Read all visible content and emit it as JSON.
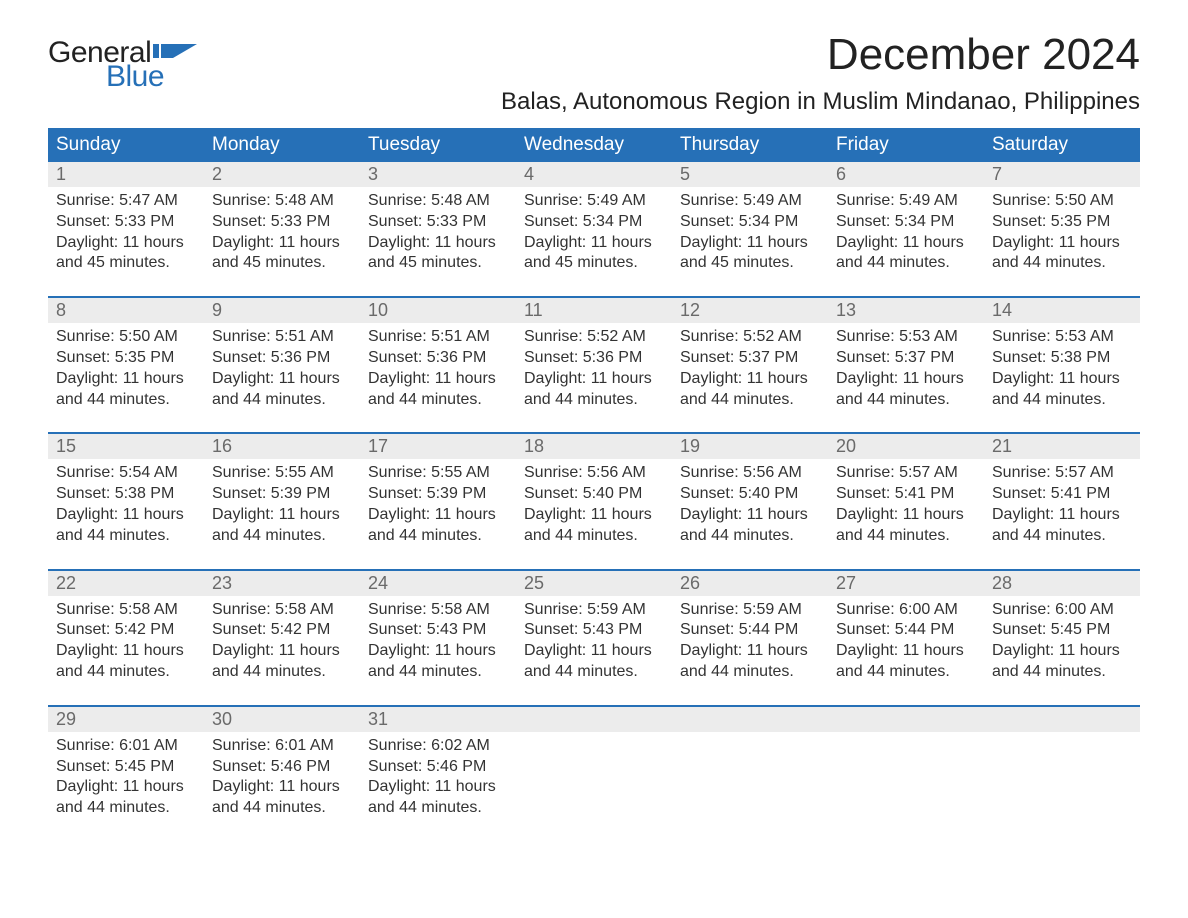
{
  "brand": {
    "text1": "General",
    "text2": "Blue",
    "flag_color": "#2670b7"
  },
  "title": "December 2024",
  "location": "Balas, Autonomous Region in Muslim Mindanao, Philippines",
  "colors": {
    "header_bg": "#2670b7",
    "header_text": "#ffffff",
    "date_bg": "#ececec",
    "date_text": "#6a6a6a",
    "body_text": "#333333",
    "week_rule": "#2670b7"
  },
  "day_names": [
    "Sunday",
    "Monday",
    "Tuesday",
    "Wednesday",
    "Thursday",
    "Friday",
    "Saturday"
  ],
  "weeks": [
    [
      {
        "d": "1",
        "sr": "5:47 AM",
        "ss": "5:33 PM",
        "dl": "11 hours and 45 minutes."
      },
      {
        "d": "2",
        "sr": "5:48 AM",
        "ss": "5:33 PM",
        "dl": "11 hours and 45 minutes."
      },
      {
        "d": "3",
        "sr": "5:48 AM",
        "ss": "5:33 PM",
        "dl": "11 hours and 45 minutes."
      },
      {
        "d": "4",
        "sr": "5:49 AM",
        "ss": "5:34 PM",
        "dl": "11 hours and 45 minutes."
      },
      {
        "d": "5",
        "sr": "5:49 AM",
        "ss": "5:34 PM",
        "dl": "11 hours and 45 minutes."
      },
      {
        "d": "6",
        "sr": "5:49 AM",
        "ss": "5:34 PM",
        "dl": "11 hours and 44 minutes."
      },
      {
        "d": "7",
        "sr": "5:50 AM",
        "ss": "5:35 PM",
        "dl": "11 hours and 44 minutes."
      }
    ],
    [
      {
        "d": "8",
        "sr": "5:50 AM",
        "ss": "5:35 PM",
        "dl": "11 hours and 44 minutes."
      },
      {
        "d": "9",
        "sr": "5:51 AM",
        "ss": "5:36 PM",
        "dl": "11 hours and 44 minutes."
      },
      {
        "d": "10",
        "sr": "5:51 AM",
        "ss": "5:36 PM",
        "dl": "11 hours and 44 minutes."
      },
      {
        "d": "11",
        "sr": "5:52 AM",
        "ss": "5:36 PM",
        "dl": "11 hours and 44 minutes."
      },
      {
        "d": "12",
        "sr": "5:52 AM",
        "ss": "5:37 PM",
        "dl": "11 hours and 44 minutes."
      },
      {
        "d": "13",
        "sr": "5:53 AM",
        "ss": "5:37 PM",
        "dl": "11 hours and 44 minutes."
      },
      {
        "d": "14",
        "sr": "5:53 AM",
        "ss": "5:38 PM",
        "dl": "11 hours and 44 minutes."
      }
    ],
    [
      {
        "d": "15",
        "sr": "5:54 AM",
        "ss": "5:38 PM",
        "dl": "11 hours and 44 minutes."
      },
      {
        "d": "16",
        "sr": "5:55 AM",
        "ss": "5:39 PM",
        "dl": "11 hours and 44 minutes."
      },
      {
        "d": "17",
        "sr": "5:55 AM",
        "ss": "5:39 PM",
        "dl": "11 hours and 44 minutes."
      },
      {
        "d": "18",
        "sr": "5:56 AM",
        "ss": "5:40 PM",
        "dl": "11 hours and 44 minutes."
      },
      {
        "d": "19",
        "sr": "5:56 AM",
        "ss": "5:40 PM",
        "dl": "11 hours and 44 minutes."
      },
      {
        "d": "20",
        "sr": "5:57 AM",
        "ss": "5:41 PM",
        "dl": "11 hours and 44 minutes."
      },
      {
        "d": "21",
        "sr": "5:57 AM",
        "ss": "5:41 PM",
        "dl": "11 hours and 44 minutes."
      }
    ],
    [
      {
        "d": "22",
        "sr": "5:58 AM",
        "ss": "5:42 PM",
        "dl": "11 hours and 44 minutes."
      },
      {
        "d": "23",
        "sr": "5:58 AM",
        "ss": "5:42 PM",
        "dl": "11 hours and 44 minutes."
      },
      {
        "d": "24",
        "sr": "5:58 AM",
        "ss": "5:43 PM",
        "dl": "11 hours and 44 minutes."
      },
      {
        "d": "25",
        "sr": "5:59 AM",
        "ss": "5:43 PM",
        "dl": "11 hours and 44 minutes."
      },
      {
        "d": "26",
        "sr": "5:59 AM",
        "ss": "5:44 PM",
        "dl": "11 hours and 44 minutes."
      },
      {
        "d": "27",
        "sr": "6:00 AM",
        "ss": "5:44 PM",
        "dl": "11 hours and 44 minutes."
      },
      {
        "d": "28",
        "sr": "6:00 AM",
        "ss": "5:45 PM",
        "dl": "11 hours and 44 minutes."
      }
    ],
    [
      {
        "d": "29",
        "sr": "6:01 AM",
        "ss": "5:45 PM",
        "dl": "11 hours and 44 minutes."
      },
      {
        "d": "30",
        "sr": "6:01 AM",
        "ss": "5:46 PM",
        "dl": "11 hours and 44 minutes."
      },
      {
        "d": "31",
        "sr": "6:02 AM",
        "ss": "5:46 PM",
        "dl": "11 hours and 44 minutes."
      },
      null,
      null,
      null,
      null
    ]
  ],
  "labels": {
    "sunrise": "Sunrise: ",
    "sunset": "Sunset: ",
    "daylight": "Daylight: "
  }
}
